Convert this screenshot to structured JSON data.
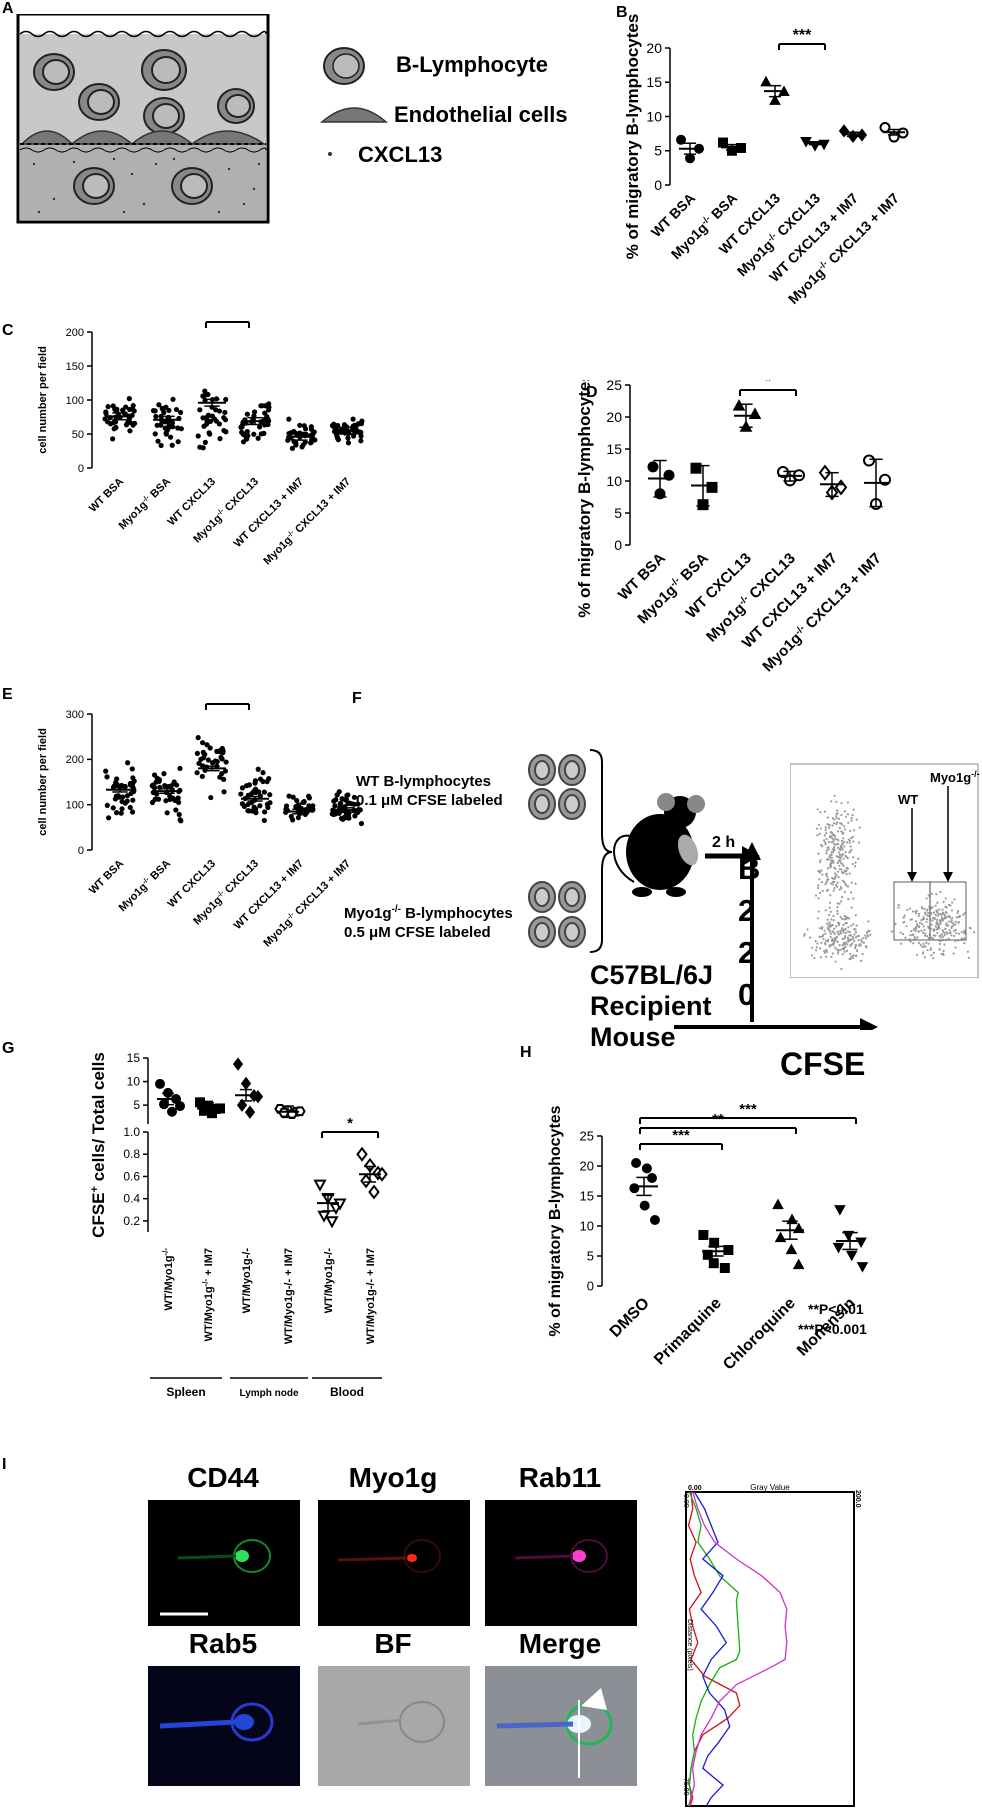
{
  "panels": {
    "A": {
      "label": "A",
      "legend": [
        "B-Lymphocyte",
        "Endothelial cells",
        "CXCL13"
      ]
    },
    "B": {
      "label": "B",
      "sig": "***"
    },
    "C": {
      "label": "C",
      "sig": "***"
    },
    "D": {
      "label": "D",
      "sig": "*"
    },
    "E": {
      "label": "E",
      "sig": "***"
    },
    "F": {
      "label": "F",
      "wt_text": [
        "WT B-lymphocytes",
        "0.1 μM CFSE labeled"
      ],
      "myo_text": [
        "Myo1g",
        "-/-",
        " B-lymphocytes",
        "0.5 μM CFSE labeled"
      ],
      "time": "2 h",
      "mouse": [
        "C57BL/6J",
        "Recipient",
        "Mouse"
      ],
      "yaxis_letters": [
        "B",
        "2",
        "2",
        "0"
      ],
      "xaxis": "CFSE",
      "gate_wt": "WT",
      "gate_myo": "Myo1g",
      "gate_myo_sup": "-/-"
    },
    "G": {
      "label": "G",
      "sig": "*",
      "ylabel_main": "CFSE",
      "ylabel_sup": "+",
      "ylabel_rest": " cells/ Total cells",
      "groups": [
        "Spleen",
        "Lymph node",
        "Blood"
      ]
    },
    "H": {
      "label": "H",
      "sig": [
        "***",
        "**",
        "***"
      ],
      "pvals": [
        "**P<0.01",
        "***P<0.001"
      ]
    },
    "I": {
      "label": "I",
      "channels": [
        {
          "name": "CD44",
          "color": "#1db954"
        },
        {
          "name": "Myo1g",
          "color": "#e0201b"
        },
        {
          "name": "Rab11",
          "color": "#e0399a"
        },
        {
          "name": "Rab5",
          "color": "#2446d8"
        },
        {
          "name": "BF",
          "color": "#111111"
        },
        {
          "name": "Merge",
          "color": "#111111"
        }
      ],
      "profile": {
        "title": "Gray Value",
        "y_title": "Distance (pixels)",
        "top_left": "0.00",
        "top_right": "200.0",
        "left_top": "0.00",
        "left_bottom": "75.00"
      }
    }
  },
  "chart_data": [
    {
      "panel": "B",
      "type": "scatter",
      "ylabel": "% of migratory B-lymphocytes",
      "ylim": [
        0,
        20
      ],
      "yticks": [
        0,
        5,
        10,
        15,
        20
      ],
      "categories": [
        "WT BSA",
        "Myo1g-/- BSA",
        "WT CXCL13",
        "Myo1g-/- CXCL13",
        "WT CXCL13 + IM7",
        "Myo1g-/- CXCL13 + IM7"
      ],
      "markers": [
        "circle",
        "square",
        "triangle",
        "triangle-down",
        "diamond",
        "circle-open"
      ],
      "points": [
        [
          6.6,
          5.3,
          3.9
        ],
        [
          6.2,
          5.4,
          5.0
        ],
        [
          15.0,
          13.6,
          12.3
        ],
        [
          6.4,
          6.0,
          5.8
        ],
        [
          7.9,
          7.3,
          7.1
        ],
        [
          8.4,
          7.6,
          7.0
        ]
      ],
      "means": [
        5.3,
        5.5,
        13.7,
        6.1,
        7.4,
        7.7
      ],
      "sem": [
        0.8,
        0.4,
        0.8,
        0.2,
        0.3,
        0.4
      ]
    },
    {
      "panel": "C",
      "type": "scatter",
      "ylabel": "cell number per field",
      "ylim": [
        0,
        200
      ],
      "yticks": [
        0,
        50,
        100,
        150,
        200
      ],
      "categories": [
        "WT BSA",
        "Myo1g-/- BSA",
        "WT CXCL13",
        "Myo1g-/- CXCL13",
        "WT CXCL13 + IM7",
        "Myo1g-/- CXCL13 + IM7"
      ],
      "means": [
        76,
        71,
        96,
        69,
        46,
        55
      ],
      "ranges": [
        [
          38,
          115
        ],
        [
          20,
          120
        ],
        [
          15,
          140
        ],
        [
          22,
          118
        ],
        [
          18,
          78
        ],
        [
          28,
          78
        ]
      ],
      "n_points": [
        40,
        40,
        35,
        40,
        35,
        45
      ]
    },
    {
      "panel": "D",
      "type": "scatter",
      "ylabel": "% of migratory B-lymphocytes",
      "ylim": [
        0,
        25
      ],
      "yticks": [
        0,
        5,
        10,
        15,
        20,
        25
      ],
      "categories": [
        "WT BSA",
        "Myo1g-/- BSA",
        "WT CXCL13",
        "Myo1g-/- CXCL13",
        "WT CXCL13 + IM7",
        "Myo1g-/- CXCL13 + IM7"
      ],
      "markers": [
        "circle",
        "square",
        "triangle",
        "circle-open",
        "diamond-open",
        "circle-open"
      ],
      "points": [
        [
          12.2,
          10.9,
          8.0
        ],
        [
          12.0,
          9.0,
          6.3
        ],
        [
          21.7,
          20.4,
          18.4
        ],
        [
          11.4,
          10.9,
          10.1
        ],
        [
          11.3,
          9.0,
          8.2
        ],
        [
          13.2,
          10.2,
          6.4
        ]
      ],
      "means": [
        10.4,
        9.3,
        20.2,
        10.8,
        9.5,
        9.7
      ],
      "sd_low": [
        7.5,
        6.1,
        18.4,
        10.0,
        7.6,
        6.0
      ],
      "sd_high": [
        13.2,
        12.4,
        22.0,
        11.5,
        11.3,
        13.4
      ]
    },
    {
      "panel": "E",
      "type": "scatter",
      "ylabel": "cell number per field",
      "ylim": [
        0,
        300
      ],
      "yticks": [
        0,
        100,
        200,
        300
      ],
      "categories": [
        "WT BSA",
        "Myo1g-/- BSA",
        "WT CXCL13",
        "Myo1g-/- CXCL13",
        "WT CXCL13 + IM7",
        "Myo1g-/- CXCL13 + IM7"
      ],
      "means": [
        133,
        130,
        180,
        113,
        85,
        88
      ],
      "ranges": [
        [
          50,
          208
        ],
        [
          28,
          215
        ],
        [
          110,
          270
        ],
        [
          30,
          210
        ],
        [
          40,
          145
        ],
        [
          40,
          145
        ]
      ],
      "n_points": [
        40,
        40,
        35,
        40,
        35,
        45
      ]
    },
    {
      "panel": "G",
      "type": "scatter",
      "ylabel": "CFSE+ cells/ Total cells",
      "ylim_top": [
        1,
        15
      ],
      "yticks_top": [
        5,
        10,
        15
      ],
      "ylim_bottom": [
        0,
        1.0
      ],
      "yticks_bottom": [
        0.2,
        0.4,
        0.6,
        0.8,
        1.0
      ],
      "categories": [
        "WT/Myo1g-/-",
        "WT/Myo1g-/- + IM7",
        "WT/Myo1g-/-",
        "WT/Myo1g-/- + IM7",
        "WT/Myo1g-/-",
        "WT/Myo1g-/- + IM7"
      ],
      "groups": [
        "Spleen",
        "Spleen",
        "Lymph node",
        "Lymph node",
        "Blood",
        "Blood"
      ],
      "markers": [
        "circle",
        "square",
        "diamond",
        "hexagon-open",
        "triangle-down-open",
        "diamond-open"
      ],
      "points": [
        [
          9.5,
          7.6,
          6.3,
          5.2,
          3.6,
          4.8
        ],
        [
          5.6,
          4.9,
          4.2,
          3.8,
          3.3,
          4.3
        ],
        [
          13.7,
          9.6,
          7.0,
          5.0,
          3.5,
          6.8
        ],
        [
          4.2,
          3.9,
          3.6,
          3.4,
          3.1,
          3.7
        ],
        [
          0.53,
          0.41,
          0.32,
          0.25,
          0.2,
          0.36
        ],
        [
          0.8,
          0.7,
          0.63,
          0.56,
          0.46,
          0.62
        ]
      ],
      "means": [
        6.3,
        4.3,
        7.1,
        3.6,
        0.36,
        0.62
      ]
    },
    {
      "panel": "H",
      "type": "scatter",
      "ylabel": "% of migratory B-lymphocytes",
      "ylim": [
        0,
        25
      ],
      "yticks": [
        0,
        5,
        10,
        15,
        20,
        25
      ],
      "categories": [
        "DMSO",
        "Primaquine",
        "Chloroquine",
        "Monensin"
      ],
      "markers": [
        "circle",
        "square",
        "triangle",
        "triangle-down"
      ],
      "points": [
        [
          20.5,
          19.6,
          18.0,
          16.3,
          13.4,
          11.0
        ],
        [
          8.5,
          7.2,
          6.0,
          5.2,
          3.8,
          3.0
        ],
        [
          13.5,
          11.0,
          9.5,
          8.0,
          6.0,
          3.5
        ],
        [
          12.8,
          8.5,
          7.4,
          6.5,
          5.2,
          3.3
        ]
      ],
      "means": [
        16.6,
        5.8,
        9.3,
        7.5
      ],
      "sem": [
        1.5,
        0.8,
        1.5,
        1.4
      ]
    },
    {
      "panel": "I",
      "type": "line",
      "title": "Gray Value",
      "ylabel": "Distance (pixels)",
      "xlim": [
        0,
        200
      ],
      "ylim": [
        0,
        75
      ],
      "series": [
        {
          "color": "#d01010",
          "x": [
            6,
            8,
            3,
            12,
            5,
            10,
            18,
            4,
            8,
            14,
            6,
            22,
            60,
            64,
            50,
            20,
            10,
            6,
            4,
            8,
            5
          ],
          "y": [
            0,
            4,
            8,
            12,
            16,
            20,
            24,
            28,
            32,
            36,
            40,
            44,
            48,
            51,
            54,
            58,
            62,
            66,
            70,
            73,
            75
          ]
        },
        {
          "color": "#10b010",
          "x": [
            4,
            12,
            18,
            14,
            28,
            40,
            62,
            60,
            62,
            64,
            60,
            40,
            28,
            18,
            12,
            8,
            10,
            6,
            4,
            6,
            3
          ],
          "y": [
            0,
            4,
            8,
            12,
            16,
            20,
            24,
            26,
            32,
            38,
            40,
            42,
            46,
            50,
            54,
            58,
            62,
            66,
            70,
            73,
            75
          ]
        },
        {
          "color": "#1a1ad0",
          "x": [
            10,
            22,
            30,
            38,
            20,
            44,
            32,
            18,
            36,
            48,
            30,
            20,
            28,
            46,
            52,
            38,
            26,
            20,
            44,
            30,
            24
          ],
          "y": [
            0,
            4,
            8,
            12,
            16,
            20,
            24,
            28,
            32,
            36,
            40,
            44,
            48,
            52,
            56,
            60,
            63,
            66,
            70,
            73,
            75
          ]
        },
        {
          "color": "#d030d0",
          "x": [
            8,
            14,
            22,
            34,
            60,
            90,
            112,
            120,
            118,
            120,
            118,
            100,
            60,
            40,
            30,
            18,
            12,
            8,
            10,
            6,
            4
          ],
          "y": [
            0,
            4,
            8,
            12,
            16,
            20,
            24,
            28,
            32,
            36,
            40,
            42,
            46,
            50,
            54,
            58,
            62,
            66,
            70,
            73,
            75
          ]
        }
      ]
    }
  ]
}
